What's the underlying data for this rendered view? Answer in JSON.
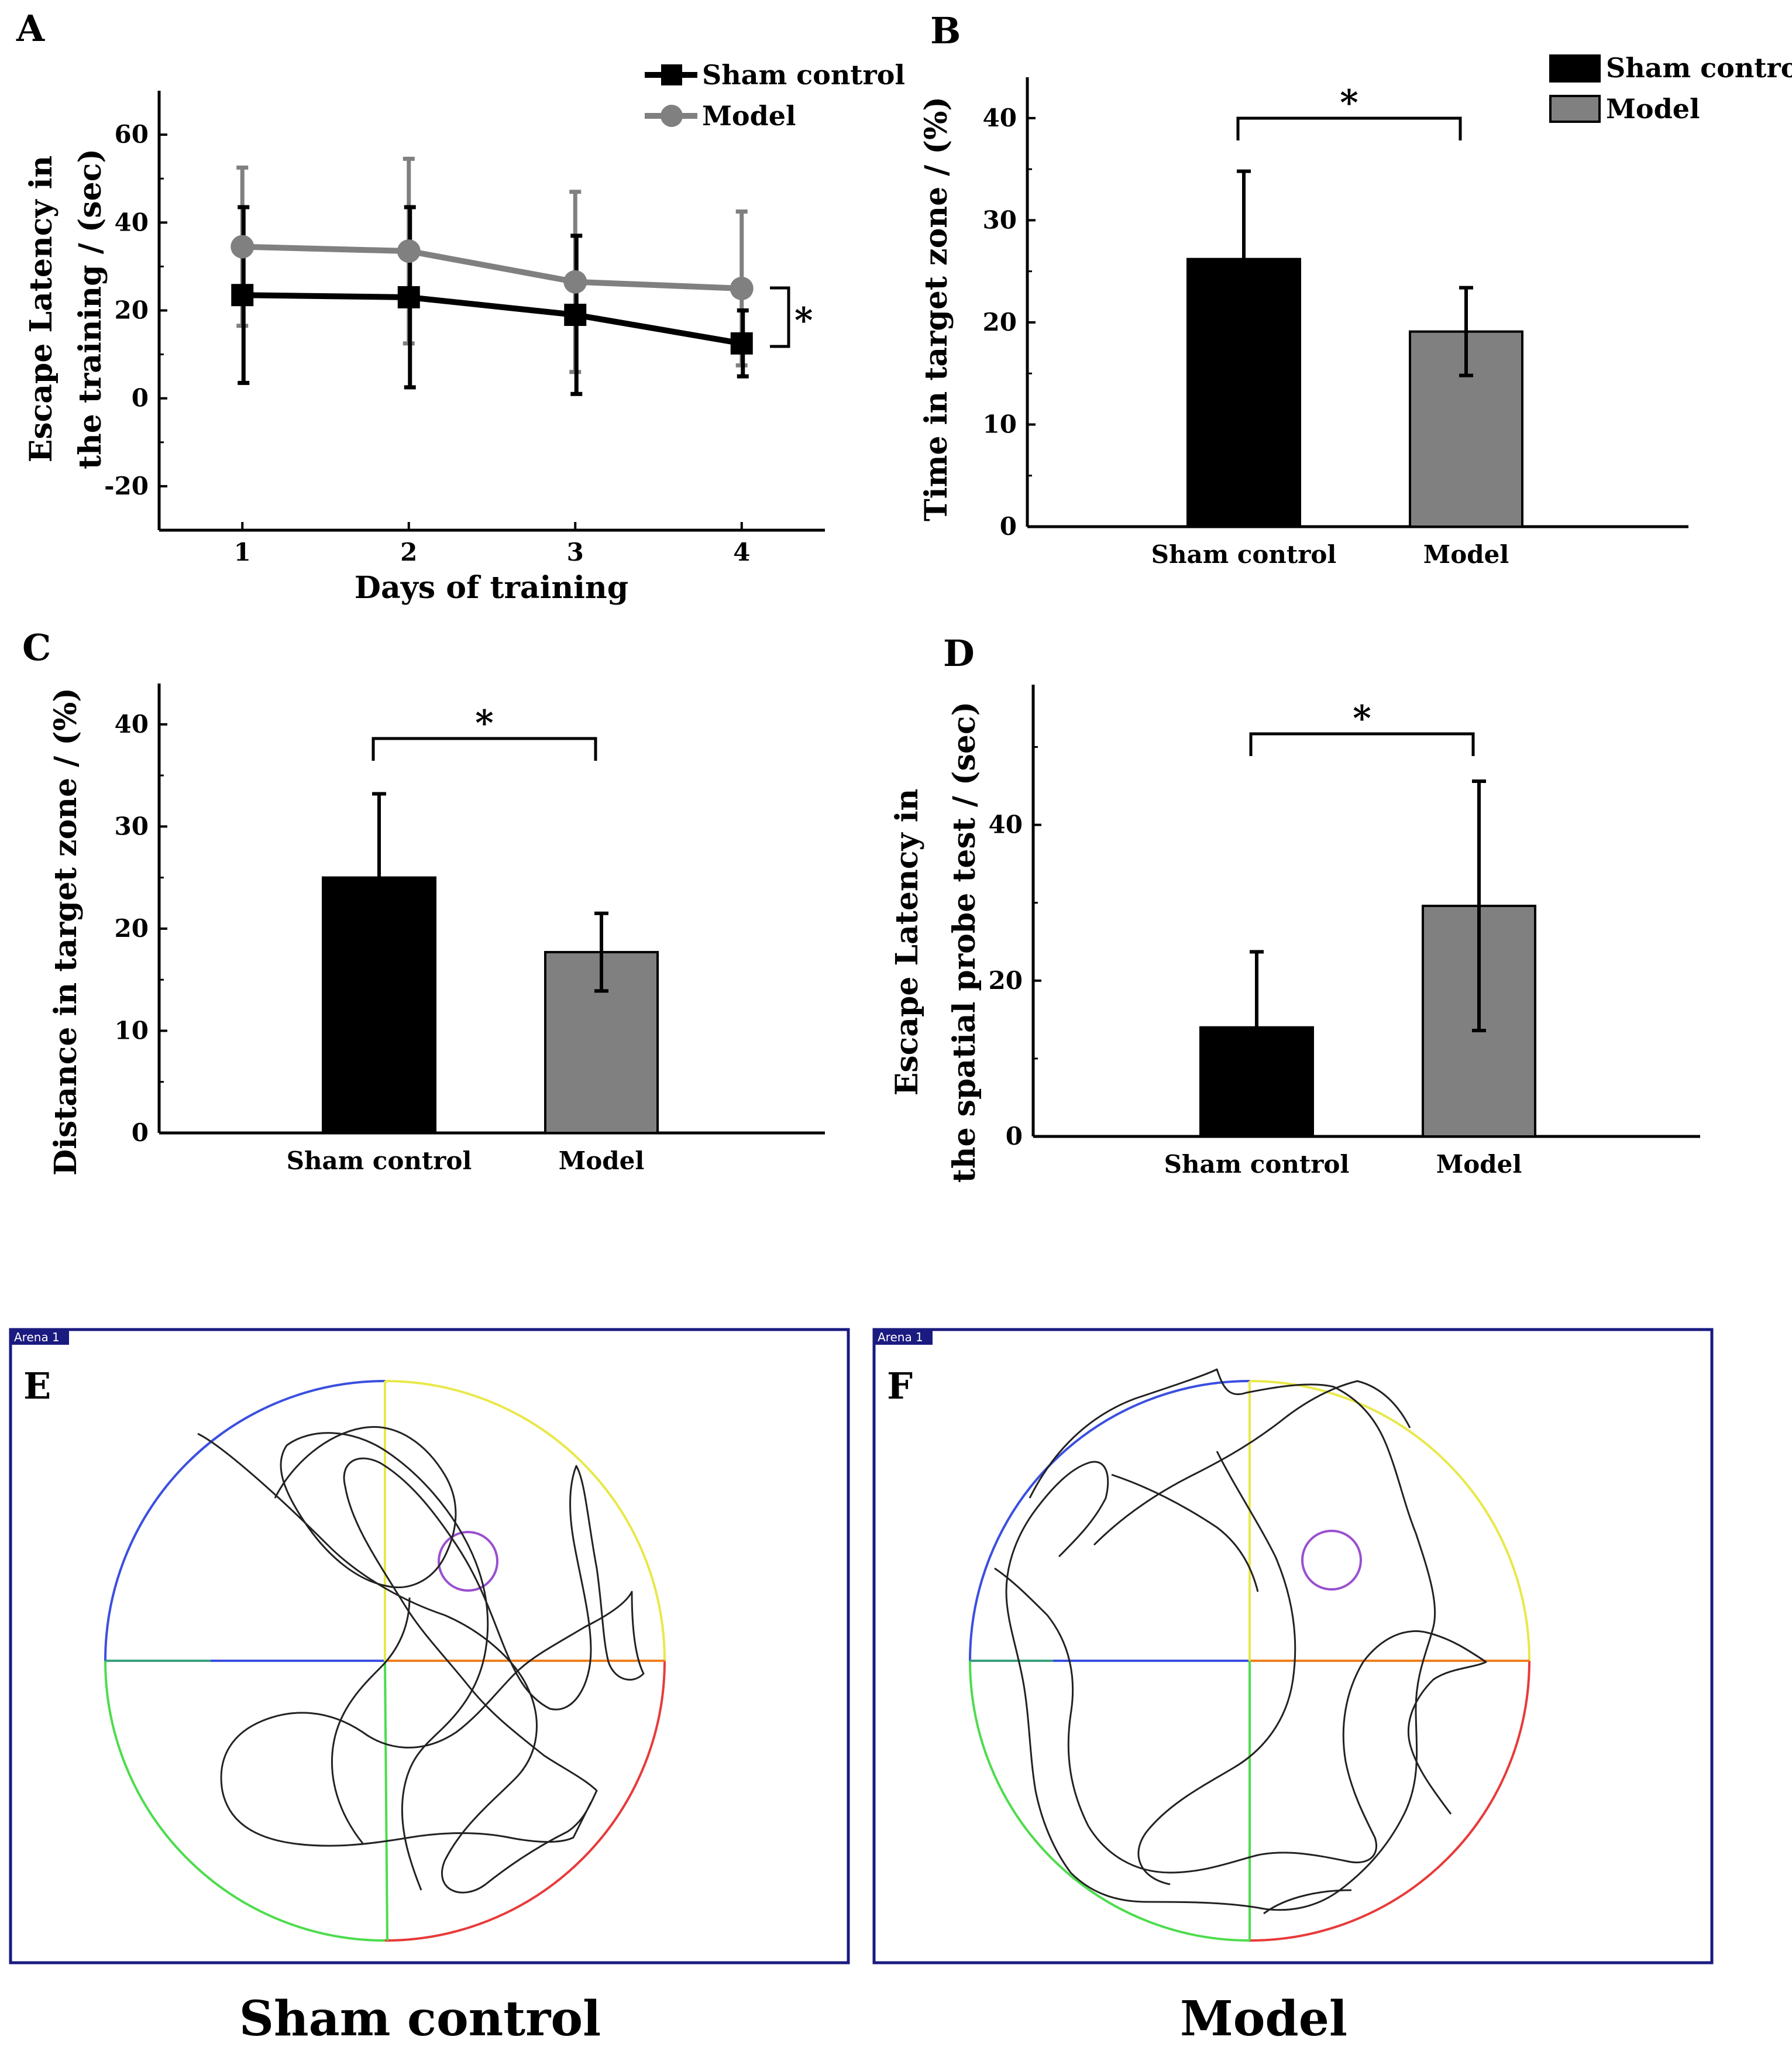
{
  "chart_data": [
    {
      "panel": "A",
      "type": "line",
      "xlabel": "Days of training",
      "ylabel_lines": [
        "Escape Latency in",
        "the training / (sec)"
      ],
      "x": [
        1,
        2,
        3,
        4
      ],
      "xticks": [
        "1",
        "2",
        "3",
        "4"
      ],
      "yticks": [
        "-20",
        "0",
        "20",
        "40",
        "60"
      ],
      "ylim": [
        -30,
        70
      ],
      "xlim": [
        0.5,
        4.5
      ],
      "series": [
        {
          "name": "Sham control",
          "color": "#000000",
          "marker": "square",
          "values": [
            23.5,
            23,
            19,
            12.5
          ],
          "errors": [
            20,
            20.5,
            18,
            7.5
          ]
        },
        {
          "name": "Model",
          "color": "#808080",
          "marker": "circle",
          "values": [
            34.5,
            33.5,
            26.5,
            25
          ],
          "errors": [
            18,
            21,
            20.5,
            17.5
          ]
        }
      ],
      "annotation": "*",
      "legend": "top-right"
    },
    {
      "panel": "B",
      "type": "bar",
      "categories": [
        "Sham control",
        "Model"
      ],
      "values": [
        26.2,
        19.1
      ],
      "errors": [
        8.6,
        4.3
      ],
      "colors": [
        "#000000",
        "#808080"
      ],
      "ylabel": "Time in target zone / (%)",
      "yticks": [
        "0",
        "10",
        "20",
        "30",
        "40"
      ],
      "ylim": [
        0,
        44
      ],
      "legend_entries": [
        "Sham control",
        "Model"
      ],
      "legend": "top-right",
      "annotation": "*"
    },
    {
      "panel": "C",
      "type": "bar",
      "categories": [
        "Sham control",
        "Model"
      ],
      "values": [
        25,
        17.7
      ],
      "errors": [
        8.2,
        3.8
      ],
      "colors": [
        "#000000",
        "#808080"
      ],
      "ylabel": "Distance in target zone  / (%)",
      "yticks": [
        "0",
        "10",
        "20",
        "30",
        "40"
      ],
      "ylim": [
        0,
        44
      ],
      "annotation": "*"
    },
    {
      "panel": "D",
      "type": "bar",
      "categories": [
        "Sham control",
        "Model"
      ],
      "values": [
        14,
        29.6
      ],
      "errors": [
        9.7,
        16
      ],
      "colors": [
        "#000000",
        "#808080"
      ],
      "ylabel_lines": [
        "Escape Latency in",
        "the spatial probe test / (sec)"
      ],
      "yticks": [
        "0",
        "20",
        "40"
      ],
      "ylim": [
        0,
        58
      ],
      "annotation": "*"
    }
  ],
  "tracks": [
    {
      "panel": "E",
      "arena_tag": "Arena 1",
      "caption": "Sham control"
    },
    {
      "panel": "F",
      "arena_tag": "Arena 1",
      "caption": "Model"
    }
  ],
  "colors": {
    "frame": "#1a1a80",
    "quadrant_top_left": "#3b4fe0",
    "quadrant_top_right": "#e8e84a",
    "quadrant_bottom_left": "#4ddc4d",
    "quadrant_bottom_right": "#e83a3a",
    "target_circle": "#9a4fd0",
    "divider_left": "#3aa080",
    "divider_right": "#f08020"
  }
}
